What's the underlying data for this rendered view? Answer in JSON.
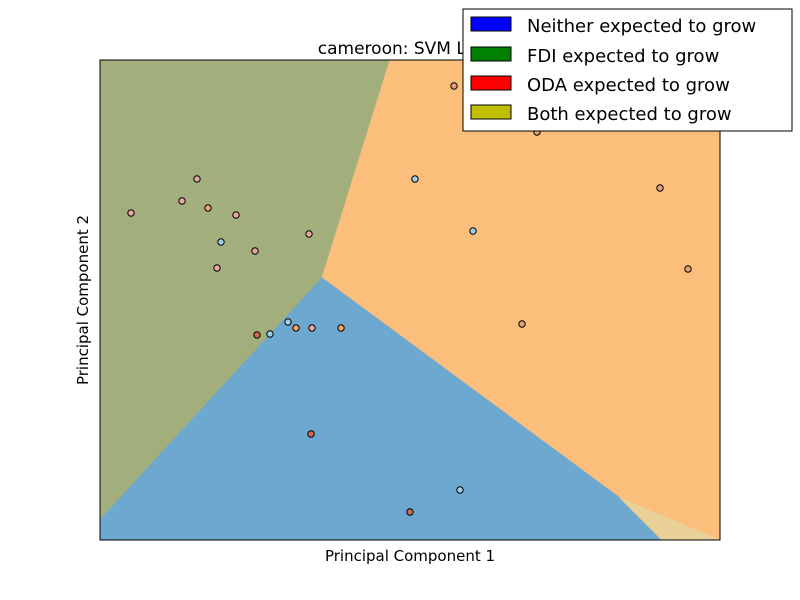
{
  "chart_data": {
    "type": "scatter",
    "title": "cameroon: SVM Linea",
    "xlabel": "Principal Component 1",
    "ylabel": "Principal Component 2",
    "xlim": [
      0,
      620
    ],
    "ylim": [
      0,
      480
    ],
    "grid": false,
    "ticks_visible": false,
    "legend": {
      "placement": "top-right",
      "entries": [
        {
          "label": "Neither expected to grow",
          "color": "#0000ff"
        },
        {
          "label": "FDI expected to grow",
          "color": "#008000"
        },
        {
          "label": "ODA expected to grow",
          "color": "#ff0000"
        },
        {
          "label": "Both expected to grow",
          "color": "#bfbf00"
        }
      ]
    },
    "regions": [
      {
        "class": "FDI expected to grow",
        "color": "#a2af7c",
        "polygon": [
          [
            0,
            480
          ],
          [
            290,
            480
          ],
          [
            222,
            262
          ],
          [
            0,
            20
          ]
        ]
      },
      {
        "class": "ODA expected to grow",
        "color": "#fcbe7b",
        "polygon": [
          [
            290,
            480
          ],
          [
            620,
            480
          ],
          [
            620,
            0
          ],
          [
            520,
            42
          ],
          [
            222,
            262
          ]
        ]
      },
      {
        "class": "Neither expected to grow",
        "color": "#6ca8cf",
        "polygon": [
          [
            0,
            20
          ],
          [
            222,
            262
          ],
          [
            520,
            42
          ],
          [
            562,
            0
          ],
          [
            0,
            0
          ]
        ]
      },
      {
        "class": "Both expected to grow",
        "color": "#e9d096",
        "polygon": [
          [
            520,
            42
          ],
          [
            620,
            0
          ],
          [
            562,
            0
          ]
        ]
      }
    ],
    "points": [
      {
        "x": 354,
        "y": 454,
        "color": "#e8a07c"
      },
      {
        "x": 437,
        "y": 408,
        "color": "#e8a07c"
      },
      {
        "x": 97,
        "y": 361,
        "color": "#dcaaa0"
      },
      {
        "x": 82,
        "y": 339,
        "color": "#e8a6a0"
      },
      {
        "x": 108,
        "y": 332,
        "color": "#e8a07c"
      },
      {
        "x": 136,
        "y": 325,
        "color": "#e8a6a0"
      },
      {
        "x": 31,
        "y": 327,
        "color": "#e8a6a0"
      },
      {
        "x": 315,
        "y": 361,
        "color": "#9ccfee"
      },
      {
        "x": 560,
        "y": 352,
        "color": "#e8a07c"
      },
      {
        "x": 373,
        "y": 309,
        "color": "#9ccfee"
      },
      {
        "x": 209,
        "y": 306,
        "color": "#e8a6a0"
      },
      {
        "x": 121,
        "y": 298,
        "color": "#9ccfee"
      },
      {
        "x": 155,
        "y": 289,
        "color": "#e8a6a0"
      },
      {
        "x": 117,
        "y": 272,
        "color": "#e8a6a0"
      },
      {
        "x": 588,
        "y": 271,
        "color": "#e8a07c"
      },
      {
        "x": 422,
        "y": 216,
        "color": "#e8a07c"
      },
      {
        "x": 188,
        "y": 218,
        "color": "#9ccfee"
      },
      {
        "x": 196,
        "y": 212,
        "color": "#f0a060"
      },
      {
        "x": 212,
        "y": 212,
        "color": "#e8a6a0"
      },
      {
        "x": 241,
        "y": 212,
        "color": "#f0a060"
      },
      {
        "x": 157,
        "y": 205,
        "color": "#d36a50"
      },
      {
        "x": 170,
        "y": 206,
        "color": "#9ccfee"
      },
      {
        "x": 211,
        "y": 106,
        "color": "#d36a50"
      },
      {
        "x": 360,
        "y": 50,
        "color": "#9ccfee"
      },
      {
        "x": 310,
        "y": 28,
        "color": "#d36a50"
      }
    ]
  }
}
